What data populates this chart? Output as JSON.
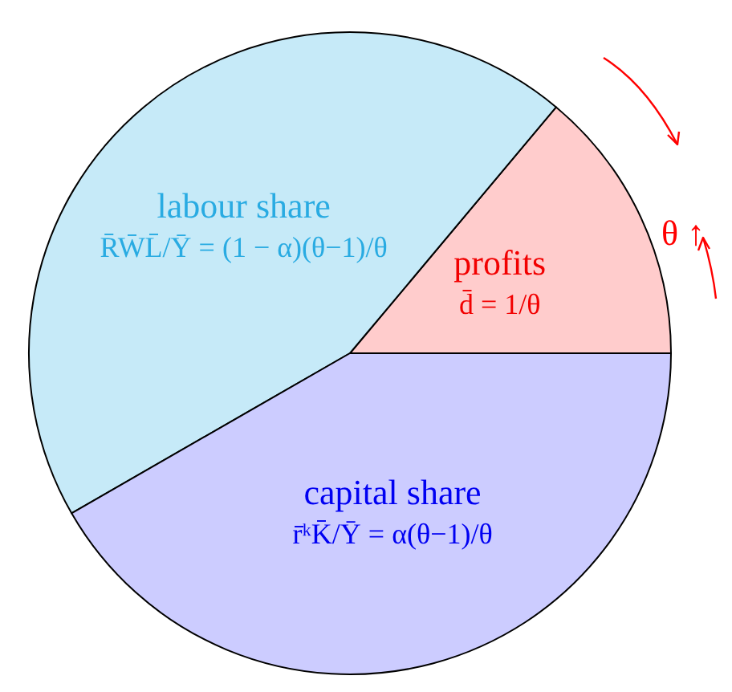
{
  "chart_data": {
    "type": "pie",
    "categories": [
      "profits",
      "labour share",
      "capital share"
    ],
    "values": [
      13.9,
      44.4,
      41.7
    ],
    "colors": [
      "#ffcccc",
      "#c6eaf8",
      "#ccccff"
    ],
    "annotations": [
      {
        "text": "d̄ = 1/θ",
        "x": "profits"
      },
      {
        "text": "R̄W̄L̄/Ȳ = (1 − α)(θ−1)/θ",
        "x": "labour share"
      },
      {
        "text": "r̄ᵏK̄/Ȳ = α(θ−1)/θ",
        "x": "capital share"
      },
      "θ ↑"
    ],
    "legend": false
  }
}
